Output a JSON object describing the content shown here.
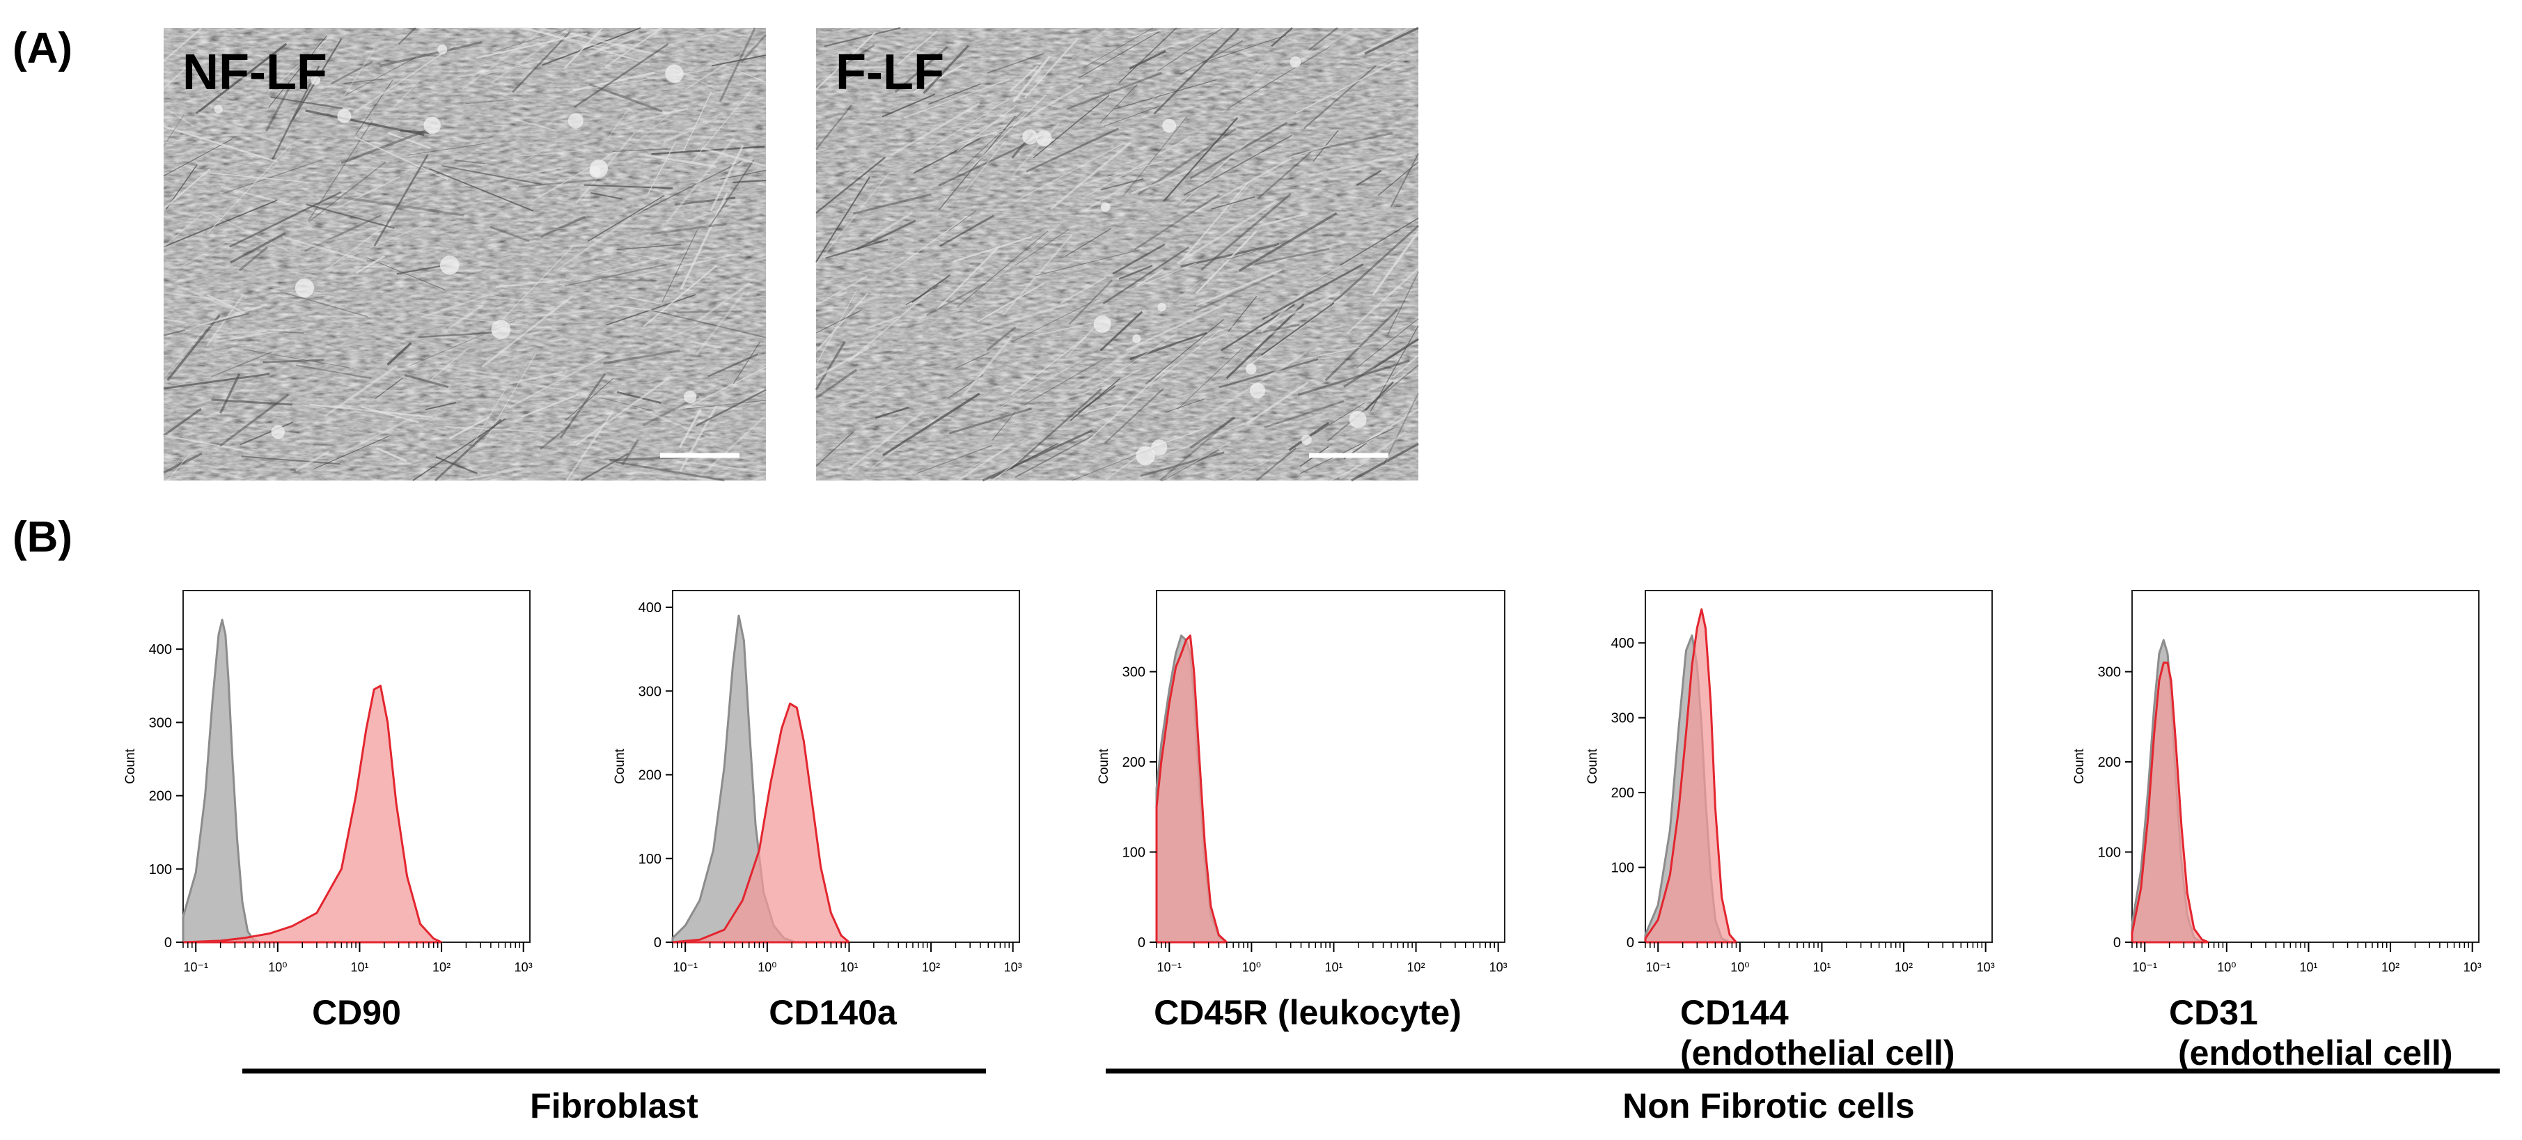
{
  "panel_labels": {
    "a": "(A)",
    "b": "(B)"
  },
  "micrographs": [
    {
      "label": "NF-LF",
      "texture_seed": 11
    },
    {
      "label": "F-LF",
      "texture_seed": 29
    }
  ],
  "colors": {
    "control_fill": "#bdbdbd",
    "control_line": "#8c8c8c",
    "sample_fill": "#f29a9a",
    "sample_line": "#e3262f",
    "overlap_fill": "#d77a7a",
    "axis": "#000000"
  },
  "groups": [
    {
      "label": "Fibroblast"
    },
    {
      "label": "Non Fibrotic cells"
    }
  ],
  "chart_data": [
    {
      "type": "area",
      "marker": "CD90",
      "marker_note": "",
      "ylabel": "Count",
      "x_scale": "log",
      "xlim": [
        0.07,
        1200
      ],
      "ylim": [
        0,
        480
      ],
      "x_ticks": [
        "10⁻¹",
        "10⁰",
        "10¹",
        "10²",
        "10³"
      ],
      "y_ticks": [
        0,
        100,
        200,
        300,
        400
      ],
      "series": [
        {
          "role": "control",
          "x": [
            0.07,
            0.1,
            0.13,
            0.16,
            0.19,
            0.21,
            0.23,
            0.25,
            0.28,
            0.32,
            0.37,
            0.43,
            0.5,
            0.6
          ],
          "y": [
            35,
            95,
            200,
            330,
            420,
            440,
            420,
            360,
            250,
            140,
            55,
            15,
            4,
            0
          ]
        },
        {
          "role": "sample",
          "x": [
            0.07,
            0.2,
            0.4,
            0.8,
            1.5,
            3,
            6,
            9,
            12,
            15,
            18,
            22,
            28,
            38,
            55,
            80,
            100
          ],
          "y": [
            0,
            2,
            6,
            12,
            22,
            40,
            100,
            200,
            290,
            345,
            350,
            300,
            190,
            90,
            25,
            5,
            0
          ]
        }
      ]
    },
    {
      "type": "area",
      "marker": "CD140a",
      "marker_note": "",
      "ylabel": "Count",
      "x_scale": "log",
      "xlim": [
        0.07,
        1200
      ],
      "ylim": [
        0,
        420
      ],
      "x_ticks": [
        "10⁻¹",
        "10⁰",
        "10¹",
        "10²",
        "10³"
      ],
      "y_ticks": [
        0,
        100,
        200,
        300,
        400
      ],
      "series": [
        {
          "role": "control",
          "x": [
            0.07,
            0.1,
            0.15,
            0.22,
            0.3,
            0.38,
            0.45,
            0.52,
            0.6,
            0.72,
            0.9,
            1.2,
            1.6,
            2.2
          ],
          "y": [
            5,
            20,
            50,
            110,
            210,
            330,
            390,
            360,
            260,
            140,
            60,
            20,
            5,
            0
          ]
        },
        {
          "role": "sample",
          "x": [
            0.07,
            0.15,
            0.3,
            0.5,
            0.8,
            1.1,
            1.5,
            1.9,
            2.3,
            2.8,
            3.5,
            4.5,
            6,
            8,
            10
          ],
          "y": [
            0,
            3,
            15,
            50,
            110,
            190,
            255,
            285,
            280,
            240,
            170,
            90,
            35,
            8,
            0
          ]
        }
      ]
    },
    {
      "type": "area",
      "marker": "CD45R (leukocyte)",
      "marker_note": "",
      "ylabel": "Count",
      "x_scale": "log",
      "xlim": [
        0.07,
        1200
      ],
      "ylim": [
        0,
        390
      ],
      "x_ticks": [
        "10⁻¹",
        "10⁰",
        "10¹",
        "10²",
        "10³"
      ],
      "y_ticks": [
        0,
        100,
        200,
        300
      ],
      "series": [
        {
          "role": "control",
          "x": [
            0.07,
            0.08,
            0.1,
            0.12,
            0.14,
            0.16,
            0.18,
            0.2,
            0.23,
            0.27,
            0.32,
            0.4,
            0.5
          ],
          "y": [
            170,
            220,
            280,
            320,
            340,
            335,
            320,
            270,
            180,
            90,
            30,
            6,
            0
          ]
        },
        {
          "role": "sample",
          "x": [
            0.07,
            0.08,
            0.1,
            0.12,
            0.14,
            0.16,
            0.18,
            0.2,
            0.23,
            0.27,
            0.32,
            0.4,
            0.5
          ],
          "y": [
            150,
            200,
            265,
            305,
            320,
            335,
            340,
            300,
            210,
            110,
            40,
            8,
            0
          ]
        }
      ]
    },
    {
      "type": "area",
      "marker": "CD144",
      "marker_note": "(endothelial cell)",
      "ylabel": "Count",
      "x_scale": "log",
      "xlim": [
        0.07,
        1200
      ],
      "ylim": [
        0,
        470
      ],
      "x_ticks": [
        "10⁻¹",
        "10⁰",
        "10¹",
        "10²",
        "10³"
      ],
      "y_ticks": [
        0,
        100,
        200,
        300,
        400
      ],
      "series": [
        {
          "role": "control",
          "x": [
            0.07,
            0.1,
            0.14,
            0.18,
            0.22,
            0.26,
            0.3,
            0.34,
            0.38,
            0.44,
            0.5,
            0.6,
            0.75
          ],
          "y": [
            10,
            50,
            150,
            290,
            390,
            410,
            370,
            290,
            190,
            90,
            30,
            5,
            0
          ]
        },
        {
          "role": "sample",
          "x": [
            0.07,
            0.1,
            0.14,
            0.18,
            0.22,
            0.26,
            0.3,
            0.34,
            0.38,
            0.44,
            0.5,
            0.6,
            0.75,
            0.9
          ],
          "y": [
            5,
            30,
            90,
            180,
            280,
            370,
            420,
            445,
            420,
            320,
            180,
            60,
            10,
            0
          ]
        }
      ]
    },
    {
      "type": "area",
      "marker": "CD31",
      "marker_note": "(endothelial cell)",
      "ylabel": "Count",
      "x_scale": "log",
      "xlim": [
        0.07,
        1200
      ],
      "ylim": [
        0,
        390
      ],
      "x_ticks": [
        "10⁻¹",
        "10⁰",
        "10¹",
        "10²",
        "10³"
      ],
      "y_ticks": [
        0,
        100,
        200,
        300
      ],
      "series": [
        {
          "role": "control",
          "x": [
            0.07,
            0.09,
            0.11,
            0.13,
            0.15,
            0.17,
            0.19,
            0.21,
            0.24,
            0.28,
            0.33,
            0.4,
            0.5
          ],
          "y": [
            20,
            80,
            170,
            260,
            320,
            335,
            320,
            270,
            180,
            90,
            30,
            5,
            0
          ]
        },
        {
          "role": "sample",
          "x": [
            0.07,
            0.09,
            0.11,
            0.13,
            0.15,
            0.17,
            0.19,
            0.21,
            0.24,
            0.28,
            0.33,
            0.4,
            0.5,
            0.6
          ],
          "y": [
            10,
            60,
            140,
            230,
            290,
            310,
            310,
            290,
            220,
            130,
            55,
            15,
            3,
            0
          ]
        }
      ]
    }
  ]
}
